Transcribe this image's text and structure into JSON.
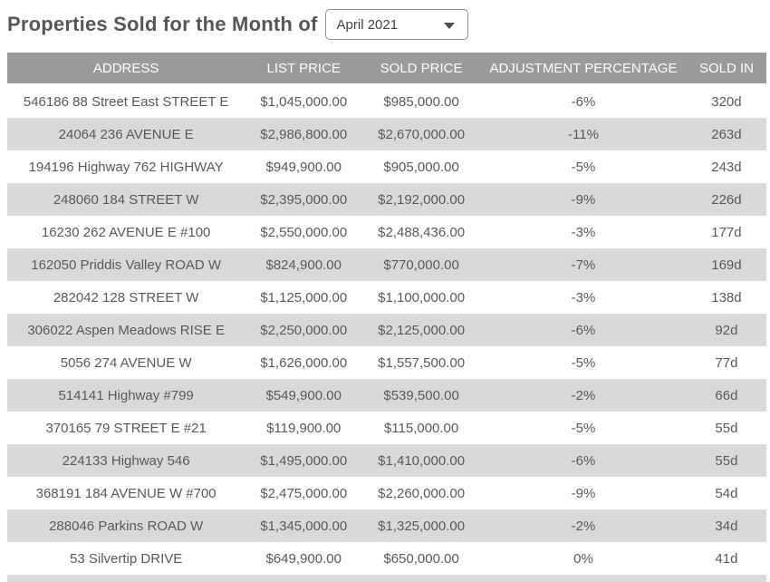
{
  "title": "Properties Sold for the Month of",
  "month_dropdown": {
    "value": "April 2021"
  },
  "table": {
    "columns": [
      "ADDRESS",
      "LIST PRICE",
      "SOLD PRICE",
      "ADJUSTMENT PERCENTAGE",
      "SOLD IN"
    ],
    "rows": [
      {
        "address": "546186 88 Street East STREET E",
        "list_price": "$1,045,000.00",
        "sold_price": "$985,000.00",
        "adjustment": "-6%",
        "sold_in": "320d"
      },
      {
        "address": "24064 236 AVENUE E",
        "list_price": "$2,986,800.00",
        "sold_price": "$2,670,000.00",
        "adjustment": "-11%",
        "sold_in": "263d"
      },
      {
        "address": "194196 Highway 762 HIGHWAY",
        "list_price": "$949,900.00",
        "sold_price": "$905,000.00",
        "adjustment": "-5%",
        "sold_in": "243d"
      },
      {
        "address": "248060 184 STREET W",
        "list_price": "$2,395,000.00",
        "sold_price": "$2,192,000.00",
        "adjustment": "-9%",
        "sold_in": "226d"
      },
      {
        "address": "16230 262 AVENUE E #100",
        "list_price": "$2,550,000.00",
        "sold_price": "$2,488,436.00",
        "adjustment": "-3%",
        "sold_in": "177d"
      },
      {
        "address": "162050 Priddis Valley ROAD W",
        "list_price": "$824,900.00",
        "sold_price": "$770,000.00",
        "adjustment": "-7%",
        "sold_in": "169d"
      },
      {
        "address": "282042 128 STREET W",
        "list_price": "$1,125,000.00",
        "sold_price": "$1,100,000.00",
        "adjustment": "-3%",
        "sold_in": "138d"
      },
      {
        "address": "306022 Aspen Meadows RISE E",
        "list_price": "$2,250,000.00",
        "sold_price": "$2,125,000.00",
        "adjustment": "-6%",
        "sold_in": "92d"
      },
      {
        "address": "5056 274 AVENUE W",
        "list_price": "$1,626,000.00",
        "sold_price": "$1,557,500.00",
        "adjustment": "-5%",
        "sold_in": "77d"
      },
      {
        "address": "514141 Highway #799",
        "list_price": "$549,900.00",
        "sold_price": "$539,500.00",
        "adjustment": "-2%",
        "sold_in": "66d"
      },
      {
        "address": "370165 79 STREET E #21",
        "list_price": "$119,900.00",
        "sold_price": "$115,000.00",
        "adjustment": "-5%",
        "sold_in": "55d"
      },
      {
        "address": "224133 Highway 546",
        "list_price": "$1,495,000.00",
        "sold_price": "$1,410,000.00",
        "adjustment": "-6%",
        "sold_in": "55d"
      },
      {
        "address": "368191 184 AVENUE W #700",
        "list_price": "$2,475,000.00",
        "sold_price": "$2,260,000.00",
        "adjustment": "-9%",
        "sold_in": "54d"
      },
      {
        "address": "288046 Parkins ROAD W",
        "list_price": "$1,345,000.00",
        "sold_price": "$1,325,000.00",
        "adjustment": "-2%",
        "sold_in": "34d"
      },
      {
        "address": "53 Silvertip DRIVE",
        "list_price": "$649,900.00",
        "sold_price": "$650,000.00",
        "adjustment": "0%",
        "sold_in": "41d"
      }
    ]
  },
  "colors": {
    "header_bg": "#9a9a9b",
    "header_text": "#ffffff",
    "row_stripe_bg": "#d9d9d9",
    "row_bg": "#ffffff",
    "body_text": "#58585a",
    "title_text": "#54565a"
  }
}
